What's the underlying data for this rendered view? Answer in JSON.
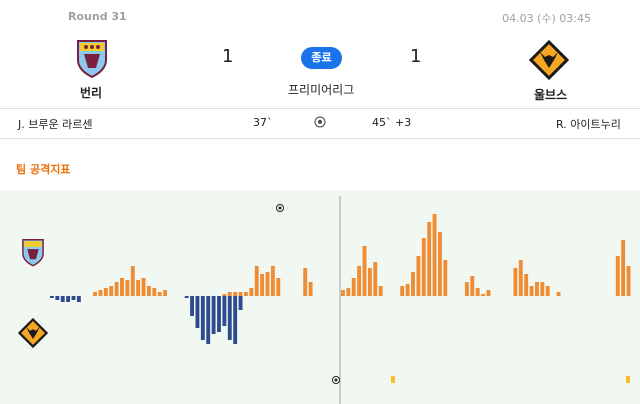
{
  "match": {
    "round": "Round 31",
    "datetime": "04.03 (수) 03:45",
    "status": "종료",
    "league": "프리미어리그",
    "home": {
      "name": "번리",
      "score": "1",
      "crest": "burnley-crest-icon"
    },
    "away": {
      "name": "울브스",
      "score": "1",
      "crest": "wolves-crest-icon"
    }
  },
  "goals": {
    "home_scorer": "J. 브루운 라르센",
    "home_minute": "37`",
    "away_minute": "45` +3",
    "away_scorer": "R. 아이트누리",
    "icon": "soccer-ball-icon"
  },
  "section": {
    "title": "팀 공격지표"
  },
  "colors": {
    "home": "#f08c33",
    "away": "#2e4b8f",
    "accent": "#e8710a",
    "pill": "#1a73e8",
    "chart_bg": "#f1f8f1"
  },
  "chart_data": {
    "type": "bar",
    "series": [
      {
        "team": "home",
        "values": [
          0,
          0,
          0,
          0,
          0,
          0,
          0,
          0,
          4,
          6,
          8,
          10,
          14,
          18,
          16,
          30,
          16,
          18,
          10,
          8,
          4,
          6,
          0,
          0,
          0,
          0,
          0,
          0,
          0,
          0,
          0,
          0,
          2,
          4,
          4,
          4,
          4,
          8,
          30,
          22,
          24,
          30,
          18,
          0,
          0,
          0,
          0,
          28,
          14,
          0,
          0,
          0,
          0,
          0,
          6,
          8,
          18,
          30,
          50,
          28,
          34,
          10,
          0,
          0,
          0,
          10,
          12,
          24,
          40,
          58,
          74,
          82,
          64,
          36,
          0,
          0,
          0,
          14,
          20,
          8,
          2,
          6,
          0,
          0,
          0,
          0,
          28,
          36,
          22,
          10,
          14,
          14,
          10,
          0,
          4,
          0,
          0,
          0,
          0,
          0,
          0,
          0,
          0,
          0,
          0,
          40,
          56,
          30
        ]
      },
      {
        "team": "away",
        "values": [
          2,
          4,
          6,
          6,
          4,
          6,
          0,
          0,
          0,
          0,
          0,
          0,
          0,
          0,
          0,
          0,
          0,
          0,
          0,
          0,
          0,
          0,
          0,
          0,
          0,
          2,
          20,
          32,
          44,
          48,
          38,
          36,
          30,
          44,
          48,
          14,
          0,
          0,
          0,
          0,
          0,
          0,
          0,
          0,
          0,
          0,
          0,
          0,
          0,
          0,
          0,
          0,
          0,
          0,
          0,
          0,
          0,
          0,
          0,
          0,
          0,
          0,
          0,
          0,
          0,
          0,
          0,
          0,
          0,
          0,
          0,
          0,
          0,
          0,
          0,
          0,
          0,
          0,
          0,
          0,
          0,
          0,
          0,
          0,
          0,
          0,
          0,
          0,
          0,
          0,
          0,
          0,
          0,
          0,
          0,
          0,
          0,
          0,
          0,
          0,
          0,
          0,
          0,
          0,
          0,
          0,
          0,
          0
        ]
      }
    ],
    "halftime_marker": true
  }
}
